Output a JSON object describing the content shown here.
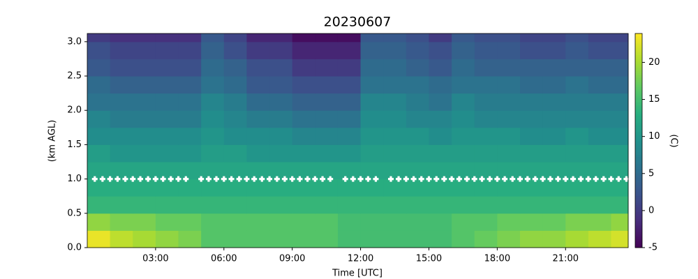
{
  "chart_data": {
    "type": "heatmap",
    "title": "20230607",
    "xlabel": "Time [UTC]",
    "ylabel": "(km AGL)",
    "colorbar_label": "(C)",
    "colormap": "viridis",
    "x": [
      0,
      1,
      2,
      3,
      4,
      5,
      6,
      7,
      8,
      9,
      10,
      11,
      12,
      13,
      14,
      15,
      16,
      17,
      18,
      19,
      20,
      21,
      22,
      23
    ],
    "y": [
      0,
      0.25,
      0.5,
      0.75,
      1,
      1.25,
      1.5,
      1.75,
      2,
      2.25,
      2.5,
      2.75,
      3
    ],
    "values": [
      [
        23,
        21,
        20,
        19,
        18,
        16,
        16,
        16,
        16,
        16,
        16,
        15,
        15,
        15,
        15,
        15,
        16,
        17,
        18,
        19,
        19,
        20,
        21,
        22
      ],
      [
        19,
        18,
        18,
        17,
        17,
        16,
        16,
        16,
        16,
        16,
        16,
        15,
        15,
        15,
        15,
        15,
        16,
        16,
        17,
        17,
        17,
        18,
        18,
        19
      ],
      [
        14,
        14,
        14,
        14,
        14,
        14,
        14,
        14,
        14,
        14,
        14,
        14,
        14,
        14,
        14,
        14,
        14,
        14,
        14,
        14,
        14,
        14,
        14,
        14
      ],
      [
        13,
        13,
        13,
        13,
        13,
        13,
        13,
        13,
        13,
        13,
        13,
        13,
        13,
        13,
        13,
        13,
        13,
        13,
        13,
        13,
        13,
        13,
        13,
        13
      ],
      [
        12,
        12,
        12,
        12,
        12,
        12,
        12,
        12,
        12,
        12,
        12,
        12,
        12,
        12,
        12,
        12,
        12,
        12,
        12,
        12,
        12,
        12,
        12,
        12
      ],
      [
        11,
        10,
        10,
        10,
        10,
        11,
        11,
        10,
        10,
        10,
        10,
        10,
        11,
        11,
        11,
        11,
        11,
        11,
        11,
        11,
        11,
        11,
        11,
        11
      ],
      [
        9,
        9,
        9,
        9,
        9,
        10,
        9,
        9,
        9,
        8,
        8,
        8,
        10,
        10,
        10,
        9,
        10,
        10,
        10,
        9,
        9,
        10,
        9,
        9
      ],
      [
        8,
        7,
        7,
        7,
        7,
        9,
        8,
        7,
        7,
        6,
        6,
        6,
        9,
        9,
        8,
        8,
        9,
        8,
        8,
        8,
        8,
        8,
        8,
        8
      ],
      [
        6,
        6,
        6,
        6,
        6,
        8,
        7,
        5,
        5,
        4,
        4,
        4,
        8,
        8,
        7,
        6,
        8,
        7,
        7,
        7,
        7,
        7,
        7,
        7
      ],
      [
        5,
        4,
        4,
        4,
        4,
        6,
        5,
        3,
        3,
        2,
        2,
        2,
        6,
        6,
        6,
        5,
        6,
        6,
        6,
        5,
        5,
        6,
        5,
        5
      ],
      [
        3,
        2,
        2,
        2,
        2,
        5,
        4,
        2,
        2,
        0,
        0,
        0,
        5,
        5,
        4,
        3,
        5,
        4,
        4,
        4,
        4,
        4,
        4,
        4
      ],
      [
        2,
        1,
        1,
        1,
        1,
        4,
        2,
        0,
        0,
        -2,
        -2,
        -2,
        4,
        4,
        3,
        2,
        4,
        3,
        3,
        2,
        2,
        3,
        2,
        2
      ],
      [
        0,
        -1,
        -1,
        -1,
        -1,
        3,
        1,
        -2,
        -2,
        -4,
        -4,
        -4,
        3,
        3,
        2,
        0,
        3,
        2,
        2,
        1,
        1,
        2,
        1,
        1
      ]
    ],
    "markers": {
      "color": "#ffffff",
      "y": 1.0,
      "x": [
        0.33,
        0.67,
        1,
        1.33,
        1.67,
        2,
        2.33,
        2.67,
        3,
        3.33,
        3.67,
        4,
        4.33,
        5,
        5.33,
        5.67,
        6,
        6.33,
        6.67,
        7,
        7.33,
        7.67,
        8,
        8.33,
        8.67,
        9,
        9.33,
        9.67,
        10,
        10.33,
        10.67,
        11.33,
        11.67,
        12,
        12.33,
        12.67,
        13.33,
        13.67,
        14,
        14.33,
        14.67,
        15,
        15.33,
        15.67,
        16,
        16.33,
        16.67,
        17,
        17.33,
        17.67,
        18,
        18.33,
        18.67,
        19,
        19.33,
        19.67,
        20,
        20.33,
        20.67,
        21,
        21.33,
        21.67,
        22,
        22.33,
        22.67,
        23,
        23.33,
        23.67
      ]
    },
    "xlim": [
      0,
      23.75
    ],
    "ylim": [
      0,
      3.12
    ],
    "clim": [
      -5,
      23.9
    ],
    "xticks": [
      {
        "value": 3,
        "label": "03:00"
      },
      {
        "value": 6,
        "label": "06:00"
      },
      {
        "value": 9,
        "label": "09:00"
      },
      {
        "value": 12,
        "label": "12:00"
      },
      {
        "value": 15,
        "label": "15:00"
      },
      {
        "value": 18,
        "label": "18:00"
      },
      {
        "value": 21,
        "label": "21:00"
      }
    ],
    "yticks": [
      {
        "value": 0,
        "label": "0.0"
      },
      {
        "value": 0.5,
        "label": "0.5"
      },
      {
        "value": 1,
        "label": "1.0"
      },
      {
        "value": 1.5,
        "label": "1.5"
      },
      {
        "value": 2,
        "label": "2.0"
      },
      {
        "value": 2.5,
        "label": "2.5"
      },
      {
        "value": 3,
        "label": "3.0"
      }
    ],
    "cticks": [
      -5,
      0,
      5,
      10,
      15,
      20
    ]
  }
}
